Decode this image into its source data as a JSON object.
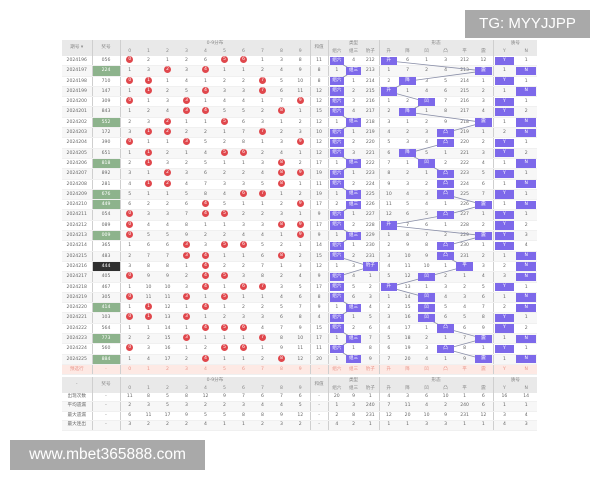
{
  "watermark_top": "TG: MYYJJPP",
  "watermark_bottom": "www.mbet365888.com",
  "colors": {
    "ball": "#e0474c",
    "highlight": "#7d69ea",
    "group3_number": "#8db38c",
    "leopard_number": "#2f2f2f",
    "predict_row": "#fde9e4"
  },
  "headers": {
    "issue": "期号 ▾",
    "number": "奖号",
    "dist_group": "0-9分布",
    "digits": [
      "0",
      "1",
      "2",
      "3",
      "4",
      "5",
      "6",
      "7",
      "8",
      "9"
    ],
    "sum": "和值",
    "type_group": "类型",
    "types": [
      "组六",
      "组三",
      "豹子"
    ],
    "form_group": "形态",
    "forms": [
      "升",
      "降",
      "凹",
      "凸",
      "平",
      "震"
    ],
    "yn_group": "质号",
    "yn": [
      "Y",
      "N"
    ]
  },
  "rows": [
    {
      "issue": "2024196",
      "number": "056",
      "style": "",
      "dist": [
        "0",
        "2",
        "1",
        "2",
        "6",
        "5",
        "6",
        "1",
        "3",
        "8"
      ],
      "sum": "11",
      "type": [
        "组六",
        "4",
        "212"
      ],
      "form": [
        "升",
        "6",
        "1",
        "3",
        "212",
        "12"
      ],
      "yn": [
        "Y",
        "1"
      ]
    },
    {
      "issue": "2024197",
      "number": "224",
      "style": "group3",
      "dist": [
        "1",
        "3",
        "2",
        "3",
        "4",
        "1",
        "1",
        "2",
        "4",
        "9"
      ],
      "sum": "8",
      "type": [
        "1",
        "组三",
        "213"
      ],
      "form": [
        "1",
        "7",
        "2",
        "4",
        "213",
        "震"
      ],
      "yn": [
        "1",
        "N"
      ]
    },
    {
      "issue": "2024198",
      "number": "710",
      "style": "",
      "dist": [
        "0",
        "1",
        "1",
        "4",
        "1",
        "2",
        "2",
        "7",
        "5",
        "10"
      ],
      "sum": "8",
      "type": [
        "组六",
        "1",
        "214"
      ],
      "form": [
        "2",
        "降",
        "3",
        "5",
        "214",
        "1"
      ],
      "yn": [
        "Y",
        "1"
      ]
    },
    {
      "issue": "2024199",
      "number": "147",
      "style": "",
      "dist": [
        "1",
        "1",
        "2",
        "5",
        "4",
        "3",
        "3",
        "7",
        "6",
        "11"
      ],
      "sum": "12",
      "type": [
        "组六",
        "2",
        "215"
      ],
      "form": [
        "升",
        "1",
        "4",
        "6",
        "215",
        "2"
      ],
      "yn": [
        "1",
        "N"
      ]
    },
    {
      "issue": "2024200",
      "number": "309",
      "style": "",
      "dist": [
        "0",
        "1",
        "3",
        "3",
        "1",
        "4",
        "4",
        "1",
        "7",
        "9"
      ],
      "sum": "12",
      "type": [
        "组六",
        "3",
        "216"
      ],
      "form": [
        "1",
        "2",
        "凹",
        "7",
        "216",
        "3"
      ],
      "yn": [
        "Y",
        "1"
      ]
    },
    {
      "issue": "2024201",
      "number": "843",
      "style": "",
      "dist": [
        "1",
        "2",
        "4",
        "3",
        "4",
        "5",
        "5",
        "2",
        "8",
        "1"
      ],
      "sum": "15",
      "type": [
        "组六",
        "4",
        "217"
      ],
      "form": [
        "2",
        "降",
        "1",
        "8",
        "217",
        "4"
      ],
      "yn": [
        "Y",
        "2"
      ]
    },
    {
      "issue": "2024202",
      "number": "552",
      "style": "group3",
      "dist": [
        "2",
        "3",
        "2",
        "1",
        "1",
        "5",
        "6",
        "3",
        "1",
        "2"
      ],
      "sum": "12",
      "type": [
        "1",
        "组三",
        "218"
      ],
      "form": [
        "3",
        "1",
        "2",
        "9",
        "218",
        "震"
      ],
      "yn": [
        "1",
        "N"
      ]
    },
    {
      "issue": "2024203",
      "number": "172",
      "style": "",
      "dist": [
        "3",
        "1",
        "2",
        "2",
        "2",
        "1",
        "7",
        "7",
        "2",
        "3"
      ],
      "sum": "10",
      "type": [
        "组六",
        "1",
        "219"
      ],
      "form": [
        "4",
        "2",
        "3",
        "凸",
        "219",
        "1"
      ],
      "yn": [
        "2",
        "N"
      ]
    },
    {
      "issue": "2024204",
      "number": "390",
      "style": "",
      "dist": [
        "0",
        "1",
        "1",
        "3",
        "5",
        "2",
        "8",
        "1",
        "3",
        "9"
      ],
      "sum": "12",
      "type": [
        "组六",
        "2",
        "220"
      ],
      "form": [
        "5",
        "3",
        "4",
        "凸",
        "220",
        "2"
      ],
      "yn": [
        "Y",
        "1"
      ]
    },
    {
      "issue": "2024205",
      "number": "651",
      "style": "",
      "dist": [
        "1",
        "1",
        "2",
        "1",
        "4",
        "5",
        "6",
        "2",
        "4",
        "1"
      ],
      "sum": "12",
      "type": [
        "组六",
        "3",
        "221"
      ],
      "form": [
        "6",
        "降",
        "5",
        "1",
        "221",
        "3"
      ],
      "yn": [
        "Y",
        "2"
      ]
    },
    {
      "issue": "2024206",
      "number": "818",
      "style": "group3",
      "dist": [
        "2",
        "1",
        "3",
        "2",
        "5",
        "1",
        "1",
        "3",
        "8",
        "2"
      ],
      "sum": "17",
      "type": [
        "1",
        "组三",
        "222"
      ],
      "form": [
        "7",
        "1",
        "凹",
        "2",
        "222",
        "4"
      ],
      "yn": [
        "1",
        "N"
      ]
    },
    {
      "issue": "2024207",
      "number": "892",
      "style": "",
      "dist": [
        "3",
        "1",
        "2",
        "3",
        "6",
        "2",
        "2",
        "4",
        "8",
        "9"
      ],
      "sum": "19",
      "type": [
        "组六",
        "1",
        "223"
      ],
      "form": [
        "8",
        "2",
        "1",
        "凸",
        "223",
        "5"
      ],
      "yn": [
        "Y",
        "1"
      ]
    },
    {
      "issue": "2024208",
      "number": "281",
      "style": "",
      "dist": [
        "4",
        "1",
        "2",
        "4",
        "7",
        "3",
        "3",
        "5",
        "8",
        "1"
      ],
      "sum": "11",
      "type": [
        "组六",
        "2",
        "224"
      ],
      "form": [
        "9",
        "3",
        "2",
        "凸",
        "224",
        "6"
      ],
      "yn": [
        "1",
        "N"
      ]
    },
    {
      "issue": "2024209",
      "number": "676",
      "style": "group3",
      "dist": [
        "5",
        "1",
        "1",
        "5",
        "8",
        "4",
        "6",
        "7",
        "1",
        "2"
      ],
      "sum": "19",
      "type": [
        "1",
        "组三",
        "225"
      ],
      "form": [
        "10",
        "4",
        "3",
        "凸",
        "225",
        "7"
      ],
      "yn": [
        "Y",
        "1"
      ]
    },
    {
      "issue": "2024210",
      "number": "449",
      "style": "group3",
      "dist": [
        "6",
        "2",
        "2",
        "6",
        "4",
        "5",
        "1",
        "1",
        "2",
        "9"
      ],
      "sum": "17",
      "type": [
        "2",
        "组三",
        "226"
      ],
      "form": [
        "11",
        "5",
        "4",
        "1",
        "226",
        "震"
      ],
      "yn": [
        "1",
        "N"
      ]
    },
    {
      "issue": "2024211",
      "number": "054",
      "style": "",
      "dist": [
        "0",
        "3",
        "3",
        "7",
        "4",
        "5",
        "2",
        "2",
        "3",
        "1"
      ],
      "sum": "9",
      "type": [
        "组六",
        "1",
        "227"
      ],
      "form": [
        "12",
        "6",
        "5",
        "凸",
        "227",
        "1"
      ],
      "yn": [
        "Y",
        "1"
      ]
    },
    {
      "issue": "2024212",
      "number": "089",
      "style": "",
      "dist": [
        "0",
        "4",
        "4",
        "8",
        "1",
        "1",
        "3",
        "3",
        "8",
        "9"
      ],
      "sum": "17",
      "type": [
        "组六",
        "2",
        "228"
      ],
      "form": [
        "升",
        "7",
        "6",
        "1",
        "228",
        "2"
      ],
      "yn": [
        "Y",
        "2"
      ]
    },
    {
      "issue": "2024213",
      "number": "009",
      "style": "group3",
      "dist": [
        "0",
        "5",
        "5",
        "9",
        "2",
        "2",
        "4",
        "4",
        "1",
        "9"
      ],
      "sum": "9",
      "type": [
        "1",
        "组三",
        "229"
      ],
      "form": [
        "1",
        "8",
        "7",
        "2",
        "229",
        "震"
      ],
      "yn": [
        "Y",
        "3"
      ]
    },
    {
      "issue": "2024214",
      "number": "365",
      "style": "",
      "dist": [
        "1",
        "6",
        "6",
        "3",
        "3",
        "5",
        "6",
        "5",
        "2",
        "1"
      ],
      "sum": "14",
      "type": [
        "组六",
        "1",
        "230"
      ],
      "form": [
        "2",
        "9",
        "8",
        "凸",
        "230",
        "1"
      ],
      "yn": [
        "Y",
        "4"
      ]
    },
    {
      "issue": "2024215",
      "number": "483",
      "style": "",
      "dist": [
        "2",
        "7",
        "7",
        "3",
        "4",
        "1",
        "1",
        "6",
        "8",
        "2"
      ],
      "sum": "15",
      "type": [
        "组六",
        "2",
        "231"
      ],
      "form": [
        "3",
        "10",
        "9",
        "凸",
        "231",
        "2"
      ],
      "yn": [
        "1",
        "N"
      ]
    },
    {
      "issue": "2024216",
      "number": "444",
      "style": "leopard",
      "dist": [
        "3",
        "8",
        "8",
        "1",
        "4",
        "2",
        "2",
        "7",
        "1",
        "3"
      ],
      "sum": "12",
      "type": [
        "1",
        "3",
        "豹子"
      ],
      "form": [
        "4",
        "11",
        "10",
        "1",
        "平",
        "3"
      ],
      "yn": [
        "2",
        "N"
      ]
    },
    {
      "issue": "2024217",
      "number": "405",
      "style": "",
      "dist": [
        "0",
        "9",
        "9",
        "2",
        "4",
        "5",
        "3",
        "8",
        "2",
        "4"
      ],
      "sum": "9",
      "type": [
        "组六",
        "4",
        "1"
      ],
      "form": [
        "5",
        "12",
        "凹",
        "2",
        "1",
        "4"
      ],
      "yn": [
        "3",
        "N"
      ]
    },
    {
      "issue": "2024218",
      "number": "467",
      "style": "",
      "dist": [
        "1",
        "10",
        "10",
        "3",
        "4",
        "1",
        "6",
        "7",
        "3",
        "5"
      ],
      "sum": "17",
      "type": [
        "组六",
        "5",
        "2"
      ],
      "form": [
        "升",
        "13",
        "1",
        "3",
        "2",
        "5"
      ],
      "yn": [
        "Y",
        "1"
      ]
    },
    {
      "issue": "2024219",
      "number": "305",
      "style": "",
      "dist": [
        "0",
        "11",
        "11",
        "3",
        "1",
        "5",
        "1",
        "1",
        "4",
        "6"
      ],
      "sum": "8",
      "type": [
        "组六",
        "6",
        "3"
      ],
      "form": [
        "1",
        "14",
        "凹",
        "4",
        "3",
        "6"
      ],
      "yn": [
        "1",
        "N"
      ]
    },
    {
      "issue": "2024220",
      "number": "414",
      "style": "group3",
      "dist": [
        "1",
        "1",
        "12",
        "1",
        "4",
        "1",
        "2",
        "2",
        "5",
        "7"
      ],
      "sum": "9",
      "type": [
        "1",
        "组三",
        "4"
      ],
      "form": [
        "2",
        "15",
        "凹",
        "5",
        "4",
        "7"
      ],
      "yn": [
        "2",
        "N"
      ]
    },
    {
      "issue": "2024221",
      "number": "103",
      "style": "",
      "dist": [
        "0",
        "1",
        "13",
        "3",
        "1",
        "2",
        "3",
        "3",
        "6",
        "8"
      ],
      "sum": "4",
      "type": [
        "组六",
        "1",
        "5"
      ],
      "form": [
        "3",
        "16",
        "凹",
        "6",
        "5",
        "8"
      ],
      "yn": [
        "Y",
        "1"
      ]
    },
    {
      "issue": "2024222",
      "number": "564",
      "style": "",
      "dist": [
        "1",
        "1",
        "14",
        "1",
        "4",
        "5",
        "6",
        "4",
        "7",
        "9"
      ],
      "sum": "15",
      "type": [
        "组六",
        "2",
        "6"
      ],
      "form": [
        "4",
        "17",
        "1",
        "凸",
        "6",
        "9"
      ],
      "yn": [
        "Y",
        "2"
      ]
    },
    {
      "issue": "2024223",
      "number": "773",
      "style": "group3",
      "dist": [
        "2",
        "2",
        "15",
        "3",
        "1",
        "1",
        "1",
        "7",
        "8",
        "10"
      ],
      "sum": "17",
      "type": [
        "1",
        "组三",
        "7"
      ],
      "form": [
        "5",
        "18",
        "2",
        "1",
        "7",
        "震"
      ],
      "yn": [
        "1",
        "N"
      ]
    },
    {
      "issue": "2024224",
      "number": "560",
      "style": "",
      "dist": [
        "0",
        "3",
        "16",
        "1",
        "2",
        "5",
        "6",
        "1",
        "9",
        "11"
      ],
      "sum": "11",
      "type": [
        "组六",
        "1",
        "8"
      ],
      "form": [
        "6",
        "19",
        "3",
        "凸",
        "8",
        "1"
      ],
      "yn": [
        "Y",
        "1"
      ]
    },
    {
      "issue": "2024225",
      "number": "884",
      "style": "group3",
      "dist": [
        "1",
        "4",
        "17",
        "2",
        "4",
        "1",
        "1",
        "2",
        "8",
        "12"
      ],
      "sum": "20",
      "type": [
        "1",
        "组三",
        "9"
      ],
      "form": [
        "7",
        "20",
        "4",
        "1",
        "9",
        "震"
      ],
      "yn": [
        "1",
        "N"
      ]
    }
  ],
  "predict_row": {
    "label": "预选行",
    "number": "-",
    "sum": "-"
  },
  "stats": [
    {
      "label": "出现次数",
      "number": "-",
      "dist": [
        "11",
        "8",
        "5",
        "8",
        "12",
        "9",
        "7",
        "6",
        "7",
        "6"
      ],
      "sum": "-",
      "type": [
        "20",
        "9",
        "1"
      ],
      "form": [
        "4",
        "3",
        "6",
        "10",
        "1",
        "6"
      ],
      "yn": [
        "16",
        "14"
      ]
    },
    {
      "label": "平均遗漏",
      "number": "-",
      "dist": [
        "2",
        "3",
        "5",
        "3",
        "2",
        "2",
        "3",
        "4",
        "4",
        "5"
      ],
      "sum": "-",
      "type": [
        "1",
        "3",
        "240"
      ],
      "form": [
        "7",
        "11",
        "4",
        "2",
        "240",
        "6"
      ],
      "yn": [
        "1",
        "1"
      ]
    },
    {
      "label": "最大遗漏",
      "number": "-",
      "dist": [
        "6",
        "11",
        "17",
        "9",
        "5",
        "5",
        "8",
        "8",
        "9",
        "12"
      ],
      "sum": "-",
      "type": [
        "2",
        "8",
        "231"
      ],
      "form": [
        "12",
        "20",
        "10",
        "9",
        "231",
        "12"
      ],
      "yn": [
        "3",
        "4"
      ]
    },
    {
      "label": "最大连出",
      "number": "-",
      "dist": [
        "3",
        "2",
        "2",
        "2",
        "4",
        "1",
        "1",
        "2",
        "3",
        "2"
      ],
      "sum": "-",
      "type": [
        "4",
        "2",
        "1"
      ],
      "form": [
        "1",
        "1",
        "3",
        "3",
        "1",
        "1"
      ],
      "yn": [
        "4",
        "3"
      ]
    }
  ],
  "bottom_header": {
    "issue": "-"
  }
}
